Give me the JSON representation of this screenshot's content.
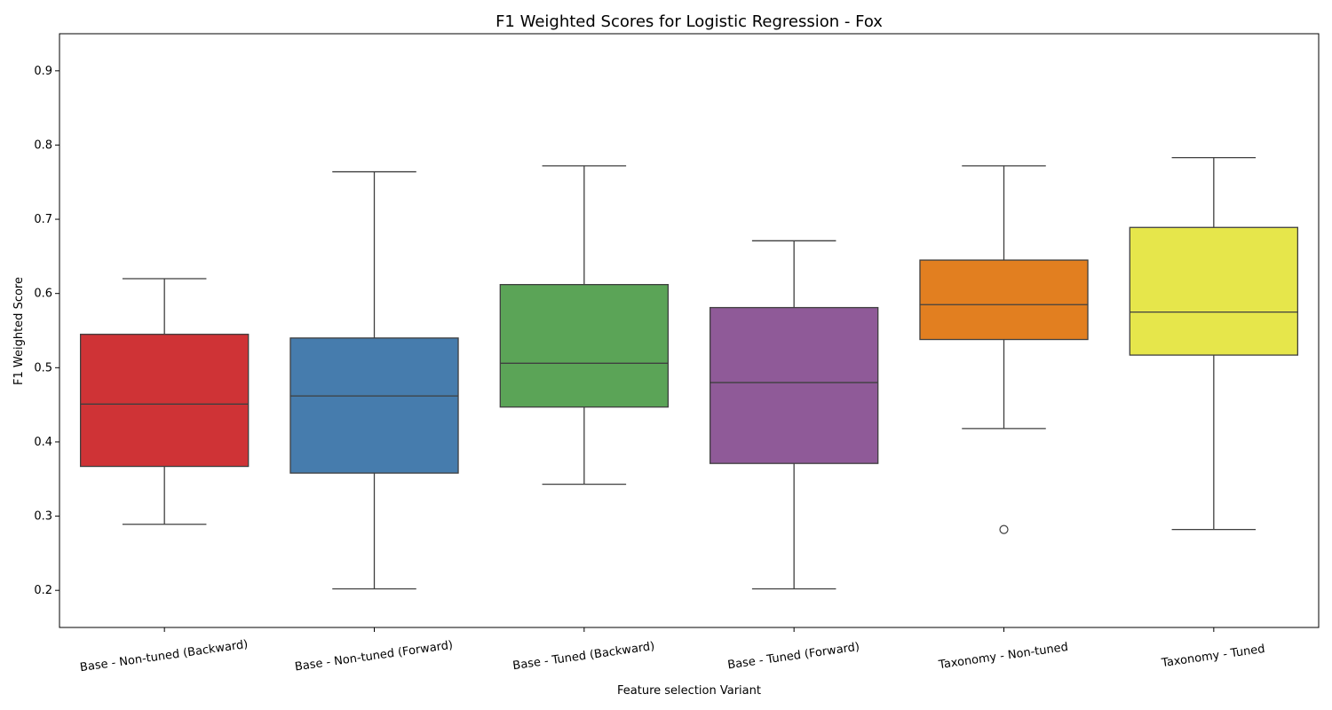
{
  "chart_data": {
    "type": "box",
    "title": "F1 Weighted Scores for Logistic Regression - Fox",
    "xlabel": "Feature selection Variant",
    "ylabel": "F1 Weighted Score",
    "ylim": [
      0.15,
      0.95
    ],
    "yticks": [
      "0.2",
      "0.3",
      "0.4",
      "0.5",
      "0.6",
      "0.7",
      "0.8",
      "0.9"
    ],
    "grid": false,
    "categories": [
      "Base - Non-tuned (Backward)",
      "Base - Non-tuned (Forward)",
      "Base - Tuned (Backward)",
      "Base - Tuned (Forward)",
      "Taxonomy - Non-tuned",
      "Taxonomy - Tuned"
    ],
    "boxes": [
      {
        "min": 0.289,
        "q1": 0.367,
        "median": 0.451,
        "q3": 0.545,
        "max": 0.62,
        "outliers": [],
        "color": "#cf3336"
      },
      {
        "min": 0.202,
        "q1": 0.358,
        "median": 0.462,
        "q3": 0.54,
        "max": 0.764,
        "outliers": [],
        "color": "#467cad"
      },
      {
        "min": 0.343,
        "q1": 0.447,
        "median": 0.506,
        "q3": 0.612,
        "max": 0.772,
        "outliers": [],
        "color": "#5ba457"
      },
      {
        "min": 0.202,
        "q1": 0.371,
        "median": 0.48,
        "q3": 0.581,
        "max": 0.671,
        "outliers": [],
        "color": "#8f5a98"
      },
      {
        "min": 0.418,
        "q1": 0.538,
        "median": 0.585,
        "q3": 0.645,
        "max": 0.772,
        "outliers": [
          0.282
        ],
        "color": "#e27f20"
      },
      {
        "min": 0.282,
        "q1": 0.517,
        "median": 0.575,
        "q3": 0.689,
        "max": 0.783,
        "outliers": [],
        "color": "#e6e64b"
      }
    ]
  }
}
